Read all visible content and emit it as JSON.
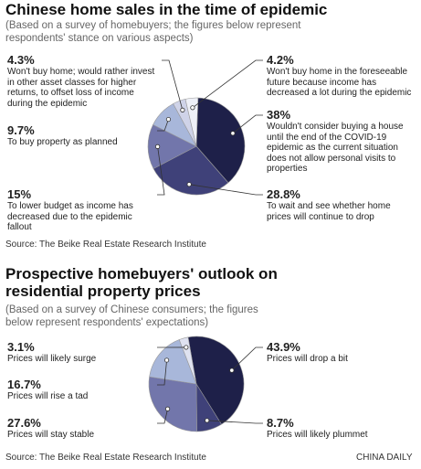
{
  "chart_data": [
    {
      "type": "pie",
      "title": "Chinese home sales in the time of epidemic",
      "subtitle": "(Based on a survey of homebuyers; the figures below represent respondents' stance on various aspects)",
      "categories": [
        "Wouldn't consider buying a house until the end of the COVID-19 epidemic as the current situation does not allow personal visits to properties",
        "To wait and see whether home prices will continue to drop",
        "To lower budget as income has decreased due to the epidemic fallout",
        "To buy property as planned",
        "Won't buy home; would rather invest in other asset classes for higher returns, to offset loss of income during the epidemic",
        "Won't buy home in the foreseeable future because income has decreased a lot during the epidemic"
      ],
      "values": [
        38,
        28.8,
        15,
        9.7,
        4.3,
        4.2
      ],
      "value_labels": [
        "38%",
        "28.8%",
        "15%",
        "9.7%",
        "4.3%",
        "4.2%"
      ],
      "colors": [
        "#1e2049",
        "#3f4179",
        "#7276ab",
        "#a8b7da",
        "#cfd3e8",
        "#eef0f7"
      ],
      "source": "Source: The Beike Real Estate Research Institute"
    },
    {
      "type": "pie",
      "title": "Prospective homebuyers' outlook on residential property prices",
      "subtitle": "(Based on a survey of Chinese consumers; the figures below represent respondents' expectations)",
      "categories": [
        "Prices will drop a bit",
        "Prices will likely plummet",
        "Prices will stay stable",
        "Prices will rise a tad",
        "Prices will likely surge"
      ],
      "values": [
        43.9,
        8.7,
        27.6,
        16.7,
        3.1
      ],
      "value_labels": [
        "43.9%",
        "8.7%",
        "27.6%",
        "16.7%",
        "3.1%"
      ],
      "colors": [
        "#1e2049",
        "#3f4179",
        "#7276ab",
        "#a8b7da",
        "#dfe2f0"
      ],
      "source": "Source: The Beike Real Estate Research Institute"
    }
  ],
  "credit": "CHINA DAILY"
}
